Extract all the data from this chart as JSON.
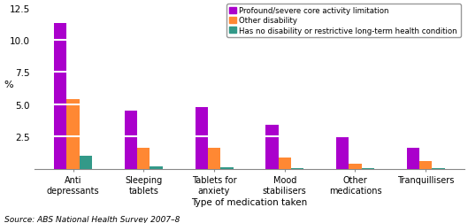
{
  "categories": [
    "Anti\ndepressants",
    "Sleeping\ntablets",
    "Tablets for\nanxiety",
    "Mood\nstabilisers",
    "Other\nmedications",
    "Tranquillisers"
  ],
  "series": {
    "Profound/severe core activity limitation": [
      11.3,
      4.5,
      4.8,
      3.4,
      2.5,
      1.6
    ],
    "Other disability": [
      5.4,
      1.6,
      1.6,
      0.9,
      0.4,
      0.6
    ],
    "Has no disability or restrictive long-term health condition": [
      1.0,
      0.2,
      0.1,
      0.05,
      0.05,
      0.05
    ]
  },
  "colors": {
    "Profound/severe core activity limitation": "#aa00cc",
    "Other disability": "#ff8833",
    "Has no disability or restrictive long-term health condition": "#339988"
  },
  "ylim": [
    0,
    12.5
  ],
  "yticks": [
    0,
    2.5,
    5.0,
    7.5,
    10.0,
    12.5
  ],
  "ylabel": "%",
  "xlabel": "Type of medication taken",
  "source": "Source: ABS National Health Survey 2007–8",
  "bar_width": 0.18,
  "grid_color": "#ffffff",
  "grid_linewidth": 1.5
}
